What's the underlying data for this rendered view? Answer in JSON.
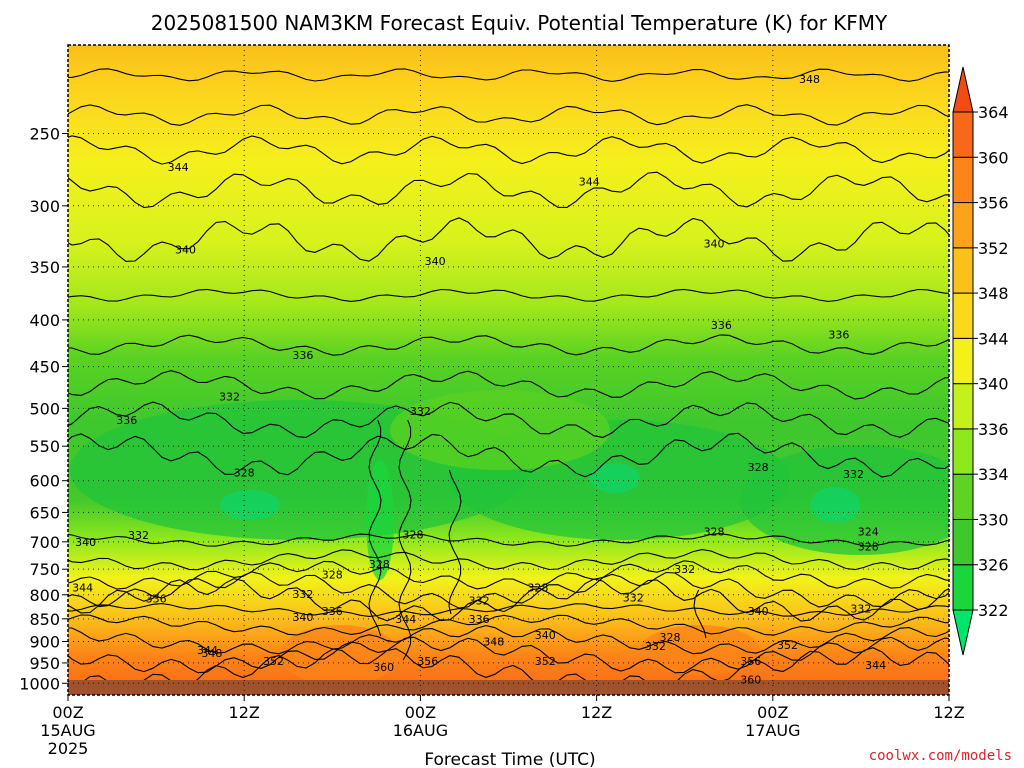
{
  "chart_data": {
    "type": "contour",
    "title": "2025081500 NAM3KM Forecast Equiv. Potential Temperature (K) for KFMY",
    "xlabel": "Forecast Time (UTC)",
    "ylabel": "",
    "x_ticks": [
      {
        "hours": 0,
        "label": "00Z",
        "date": "15AUG",
        "year": "2025"
      },
      {
        "hours": 12,
        "label": "12Z",
        "date": "",
        "year": ""
      },
      {
        "hours": 24,
        "label": "00Z",
        "date": "16AUG",
        "year": ""
      },
      {
        "hours": 36,
        "label": "12Z",
        "date": "",
        "year": ""
      },
      {
        "hours": 48,
        "label": "00Z",
        "date": "17AUG",
        "year": ""
      },
      {
        "hours": 60,
        "label": "12Z",
        "date": "",
        "year": ""
      }
    ],
    "xlim": [
      0,
      60
    ],
    "y_ticks": [
      250,
      300,
      350,
      400,
      450,
      500,
      550,
      600,
      650,
      700,
      750,
      800,
      850,
      900,
      950,
      1000
    ],
    "ylim": [
      1030,
      200
    ],
    "y_scale": "log",
    "grid": true,
    "colorbar": {
      "levels": [
        322,
        326,
        330,
        334,
        336,
        340,
        344,
        348,
        352,
        356,
        360,
        364
      ],
      "colors": [
        "#00e66a",
        "#1ad63c",
        "#3ec82e",
        "#60d221",
        "#8ee81c",
        "#c4f01c",
        "#f2f21a",
        "#fbd81a",
        "#fbc01a",
        "#fca31a",
        "#fc8418",
        "#f86818",
        "#f04c14"
      ]
    },
    "contour_labels": [
      {
        "hours": 50.5,
        "pressure": 218,
        "value": "348"
      },
      {
        "hours": 7.5,
        "pressure": 272,
        "value": "344"
      },
      {
        "hours": 35.5,
        "pressure": 282,
        "value": "344"
      },
      {
        "hours": 8.0,
        "pressure": 335,
        "value": "340"
      },
      {
        "hours": 25.0,
        "pressure": 345,
        "value": "340"
      },
      {
        "hours": 44.0,
        "pressure": 330,
        "value": "340"
      },
      {
        "hours": 44.5,
        "pressure": 405,
        "value": "336"
      },
      {
        "hours": 52.5,
        "pressure": 415,
        "value": "336"
      },
      {
        "hours": 16.0,
        "pressure": 437,
        "value": "336"
      },
      {
        "hours": 4.0,
        "pressure": 515,
        "value": "336"
      },
      {
        "hours": 11.0,
        "pressure": 485,
        "value": "332"
      },
      {
        "hours": 24.0,
        "pressure": 503,
        "value": "332"
      },
      {
        "hours": 12.0,
        "pressure": 588,
        "value": "328"
      },
      {
        "hours": 47.0,
        "pressure": 580,
        "value": "328"
      },
      {
        "hours": 53.5,
        "pressure": 590,
        "value": "332"
      },
      {
        "hours": 4.8,
        "pressure": 688,
        "value": "332"
      },
      {
        "hours": 1.2,
        "pressure": 700,
        "value": "340"
      },
      {
        "hours": 23.5,
        "pressure": 687,
        "value": "328"
      },
      {
        "hours": 44.0,
        "pressure": 682,
        "value": "328"
      },
      {
        "hours": 54.5,
        "pressure": 682,
        "value": "324"
      },
      {
        "hours": 54.5,
        "pressure": 708,
        "value": "328"
      },
      {
        "hours": 21.2,
        "pressure": 740,
        "value": "328"
      },
      {
        "hours": 18.0,
        "pressure": 760,
        "value": "328"
      },
      {
        "hours": 42.0,
        "pressure": 750,
        "value": "332"
      },
      {
        "hours": 1.0,
        "pressure": 785,
        "value": "344"
      },
      {
        "hours": 6.0,
        "pressure": 808,
        "value": "336"
      },
      {
        "hours": 16.0,
        "pressure": 798,
        "value": "332"
      },
      {
        "hours": 32.0,
        "pressure": 785,
        "value": "328"
      },
      {
        "hours": 28.0,
        "pressure": 812,
        "value": "332"
      },
      {
        "hours": 38.5,
        "pressure": 805,
        "value": "332"
      },
      {
        "hours": 18.0,
        "pressure": 833,
        "value": "336"
      },
      {
        "hours": 16.0,
        "pressure": 846,
        "value": "340"
      },
      {
        "hours": 23.0,
        "pressure": 850,
        "value": "344"
      },
      {
        "hours": 28.0,
        "pressure": 850,
        "value": "336"
      },
      {
        "hours": 47.0,
        "pressure": 833,
        "value": "340"
      },
      {
        "hours": 54.0,
        "pressure": 828,
        "value": "332"
      },
      {
        "hours": 32.5,
        "pressure": 885,
        "value": "340"
      },
      {
        "hours": 29.0,
        "pressure": 900,
        "value": "348"
      },
      {
        "hours": 41.0,
        "pressure": 890,
        "value": "328"
      },
      {
        "hours": 40.0,
        "pressure": 910,
        "value": "332"
      },
      {
        "hours": 9.5,
        "pressure": 920,
        "value": "344"
      },
      {
        "hours": 9.8,
        "pressure": 926,
        "value": "348"
      },
      {
        "hours": 14.0,
        "pressure": 945,
        "value": "352"
      },
      {
        "hours": 49.0,
        "pressure": 908,
        "value": "352"
      },
      {
        "hours": 24.5,
        "pressure": 945,
        "value": "356"
      },
      {
        "hours": 32.5,
        "pressure": 945,
        "value": "352"
      },
      {
        "hours": 46.5,
        "pressure": 945,
        "value": "356"
      },
      {
        "hours": 55.0,
        "pressure": 955,
        "value": "344"
      },
      {
        "hours": 21.5,
        "pressure": 960,
        "value": "360"
      },
      {
        "hours": 46.5,
        "pressure": 990,
        "value": "360"
      }
    ]
  },
  "footer": {
    "credit": "coolwx.com/models"
  }
}
